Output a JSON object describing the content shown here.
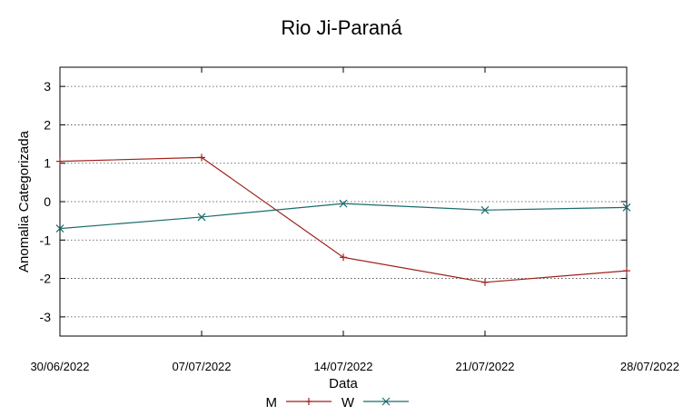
{
  "chart_data": {
    "type": "line",
    "title": "Rio Ji-Paraná",
    "xlabel": "Data",
    "ylabel": "Anomalia Categorizada",
    "categories": [
      "30/06/2022",
      "07/07/2022",
      "14/07/2022",
      "21/07/2022",
      "28/07/2022"
    ],
    "y_ticks": [
      "3",
      "2",
      "1",
      "0",
      "-1",
      "-2",
      "-3"
    ],
    "ylim": [
      -3.5,
      3.5
    ],
    "grid": "horizontal dotted",
    "legend_position": "bottom-center",
    "series": [
      {
        "name": "M",
        "values": [
          1.05,
          1.15,
          -1.45,
          -2.1,
          -1.8
        ],
        "color": "#a0201a",
        "marker": "plus"
      },
      {
        "name": "W",
        "values": [
          -0.7,
          -0.4,
          -0.05,
          -0.22,
          -0.15
        ],
        "color": "#1a6b6b",
        "marker": "cross"
      }
    ]
  }
}
